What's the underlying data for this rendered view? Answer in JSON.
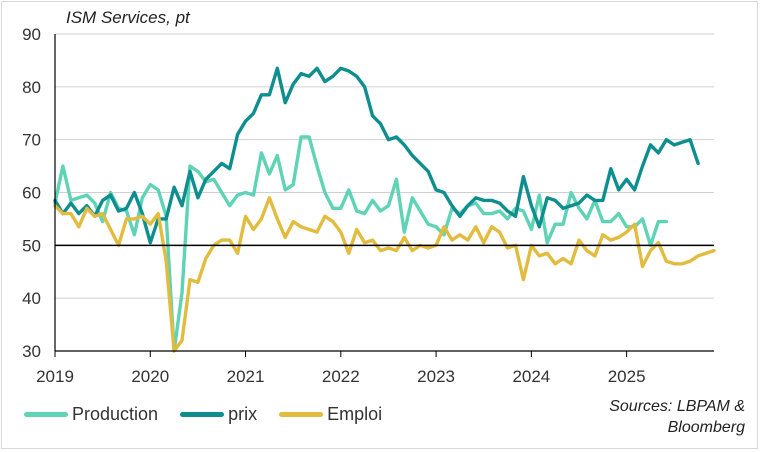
{
  "chart_data": {
    "type": "line",
    "title": "ISM Services, pt",
    "xlabel": "",
    "ylabel": "",
    "ylim": [
      30,
      90
    ],
    "yticks": [
      30,
      40,
      50,
      60,
      70,
      80,
      90
    ],
    "xlim": [
      2019.0,
      2025.917
    ],
    "xticks": [
      {
        "value": 2019,
        "label": "2019"
      },
      {
        "value": 2020,
        "label": "2020"
      },
      {
        "value": 2021,
        "label": "2021"
      },
      {
        "value": 2022,
        "label": "2022"
      },
      {
        "value": 2023,
        "label": "2023"
      },
      {
        "value": 2024,
        "label": "2024"
      },
      {
        "value": 2025,
        "label": "2025"
      }
    ],
    "reference_line": 50,
    "x_start": 2019.0,
    "x_step": 0.0833333,
    "series": [
      {
        "name": "Production",
        "color": "#5fd3b5",
        "values": [
          58.0,
          65.0,
          58.5,
          59.0,
          59.5,
          58.0,
          54.5,
          60.0,
          57.0,
          56.5,
          52.0,
          59.0,
          61.5,
          60.5,
          55.5,
          30.0,
          41.0,
          65.0,
          64.0,
          62.0,
          62.5,
          60.0,
          57.5,
          59.5,
          60.0,
          59.5,
          67.5,
          63.5,
          67.0,
          60.5,
          61.5,
          70.5,
          70.5,
          65.0,
          60.0,
          57.0,
          57.0,
          60.5,
          56.5,
          56.0,
          58.5,
          56.5,
          57.5,
          62.5,
          52.5,
          59.0,
          56.5,
          54.0,
          53.5,
          52.0,
          57.0,
          56.0,
          57.5,
          58.0,
          56.0,
          56.0,
          56.5,
          55.0,
          57.0,
          56.5,
          53.0,
          59.5,
          50.5,
          54.0,
          54.0,
          60.0,
          57.0,
          55.0,
          58.5,
          54.5,
          54.5,
          56.0,
          53.5,
          53.5,
          55.0,
          50.0,
          54.5,
          54.5
        ]
      },
      {
        "name": "prix",
        "color": "#0e8e8e",
        "values": [
          58.5,
          56.0,
          58.0,
          56.0,
          57.5,
          55.5,
          58.5,
          59.5,
          56.5,
          57.0,
          60.0,
          56.0,
          50.5,
          55.0,
          55.0,
          61.0,
          57.5,
          64.0,
          59.0,
          62.5,
          64.0,
          65.5,
          64.5,
          71.0,
          73.5,
          75.0,
          78.5,
          78.5,
          83.5,
          77.0,
          80.5,
          82.5,
          82.0,
          83.5,
          81.0,
          82.0,
          83.5,
          83.0,
          82.0,
          80.0,
          74.5,
          73.0,
          70.0,
          70.5,
          69.0,
          67.0,
          65.5,
          64.0,
          60.5,
          60.0,
          57.5,
          55.5,
          57.5,
          59.0,
          58.5,
          58.5,
          58.0,
          56.5,
          55.5,
          63.0,
          57.5,
          53.5,
          59.0,
          58.5,
          57.0,
          57.5,
          58.0,
          59.5,
          58.5,
          58.5,
          64.5,
          60.5,
          62.5,
          60.5,
          65.0,
          69.0,
          67.5,
          70.0,
          69.0,
          69.5,
          70.0,
          65.5
        ]
      },
      {
        "name": "Emploi",
        "color": "#e2bc3f",
        "values": [
          57.5,
          56.0,
          56.0,
          53.5,
          57.0,
          55.5,
          56.0,
          53.0,
          50.0,
          55.0,
          55.0,
          55.5,
          54.0,
          56.0,
          47.0,
          30.0,
          32.0,
          43.5,
          43.0,
          47.5,
          50.0,
          51.0,
          51.0,
          48.5,
          55.5,
          53.0,
          55.0,
          59.0,
          55.0,
          51.5,
          54.5,
          53.5,
          53.0,
          52.5,
          55.5,
          54.5,
          52.5,
          48.5,
          53.0,
          50.5,
          51.0,
          49.0,
          49.5,
          49.0,
          51.5,
          49.0,
          50.0,
          49.5,
          50.0,
          53.5,
          51.0,
          52.0,
          51.0,
          53.5,
          50.5,
          53.5,
          52.5,
          49.5,
          50.0,
          43.5,
          50.0,
          48.0,
          48.5,
          46.5,
          47.5,
          46.5,
          51.0,
          49.0,
          48.0,
          52.0,
          51.0,
          51.5,
          52.5,
          54.0,
          46.0,
          49.0,
          50.5,
          47.0,
          46.5,
          46.5,
          47.0,
          48.0,
          48.5,
          49.0
        ]
      }
    ],
    "legend": [
      "Production",
      "prix",
      "Emploi"
    ],
    "legend_position": "bottom-left",
    "source": [
      "Sources: LBPAM &",
      "Bloomberg"
    ]
  },
  "colors": {
    "axis": "#000000",
    "grid": "#d0d0d0",
    "tick_text": "#333333"
  }
}
